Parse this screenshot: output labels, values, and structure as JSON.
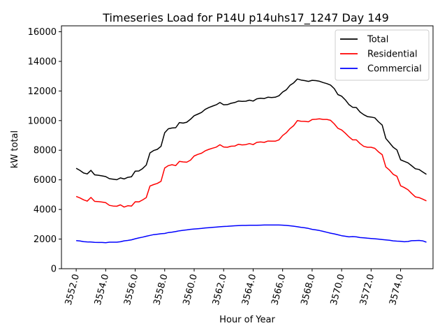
{
  "chart_data": {
    "type": "line",
    "title": "Timeseries Load for P14U p14uhs17_1247  Day 149",
    "xlabel": "Hour of Year",
    "ylabel": "kW total",
    "xlim": [
      3551.0,
      3576.2
    ],
    "ylim": [
      0,
      16400
    ],
    "x_ticks": [
      3552,
      3554,
      3556,
      3558,
      3560,
      3562,
      3564,
      3566,
      3568,
      3570,
      3572,
      3574
    ],
    "x_tick_labels": [
      "3552.0",
      "3554.0",
      "3556.0",
      "3558.0",
      "3560.0",
      "3562.0",
      "3564.0",
      "3566.0",
      "3568.0",
      "3570.0",
      "3572.0",
      "3574.0"
    ],
    "y_ticks": [
      0,
      2000,
      4000,
      6000,
      8000,
      10000,
      12000,
      14000,
      16000
    ],
    "y_tick_labels": [
      "0",
      "2000",
      "4000",
      "6000",
      "8000",
      "10000",
      "12000",
      "14000",
      "16000"
    ],
    "legend_position": "top-right",
    "x": [
      3552.0,
      3552.25,
      3552.5,
      3552.75,
      3553.0,
      3553.25,
      3553.5,
      3553.75,
      3554.0,
      3554.25,
      3554.5,
      3554.75,
      3555.0,
      3555.25,
      3555.5,
      3555.75,
      3556.0,
      3556.25,
      3556.5,
      3556.75,
      3557.0,
      3557.25,
      3557.5,
      3557.75,
      3558.0,
      3558.25,
      3558.5,
      3558.75,
      3559.0,
      3559.25,
      3559.5,
      3559.75,
      3560.0,
      3560.25,
      3560.5,
      3560.75,
      3561.0,
      3561.25,
      3561.5,
      3561.75,
      3562.0,
      3562.25,
      3562.5,
      3562.75,
      3563.0,
      3563.25,
      3563.5,
      3563.75,
      3564.0,
      3564.25,
      3564.5,
      3564.75,
      3565.0,
      3565.25,
      3565.5,
      3565.75,
      3566.0,
      3566.25,
      3566.5,
      3566.75,
      3567.0,
      3567.25,
      3567.5,
      3567.75,
      3568.0,
      3568.25,
      3568.5,
      3568.75,
      3569.0,
      3569.25,
      3569.5,
      3569.75,
      3570.0,
      3570.25,
      3570.5,
      3570.75,
      3571.0,
      3571.25,
      3571.5,
      3571.75,
      3572.0,
      3572.25,
      3572.5,
      3572.75,
      3573.0,
      3573.25,
      3573.5,
      3573.75,
      3574.0,
      3574.25,
      3574.5,
      3574.75,
      3575.0,
      3575.25,
      3575.5,
      3575.75
    ],
    "series": [
      {
        "name": "Total",
        "color": "#000000",
        "values": [
          6780,
          6640,
          6460,
          6400,
          6640,
          6340,
          6310,
          6270,
          6220,
          6080,
          6040,
          6010,
          6130,
          6060,
          6170,
          6210,
          6590,
          6600,
          6760,
          7000,
          7820,
          7980,
          8060,
          8260,
          9180,
          9450,
          9500,
          9520,
          9870,
          9830,
          9890,
          10090,
          10330,
          10440,
          10550,
          10760,
          10880,
          10980,
          11070,
          11220,
          11070,
          11080,
          11170,
          11220,
          11320,
          11300,
          11310,
          11380,
          11320,
          11470,
          11510,
          11490,
          11580,
          11560,
          11580,
          11680,
          11930,
          12080,
          12380,
          12550,
          12810,
          12740,
          12700,
          12650,
          12720,
          12700,
          12660,
          12570,
          12500,
          12400,
          12160,
          11760,
          11650,
          11400,
          11080,
          10900,
          10880,
          10580,
          10400,
          10270,
          10240,
          10190,
          9920,
          9700,
          8800,
          8500,
          8200,
          8020,
          7350,
          7250,
          7150,
          6950,
          6750,
          6700,
          6530,
          6370
        ]
      },
      {
        "name": "Residential",
        "color": "#ff0000",
        "values": [
          4880,
          4780,
          4650,
          4560,
          4810,
          4550,
          4530,
          4500,
          4460,
          4280,
          4230,
          4220,
          4310,
          4160,
          4250,
          4230,
          4520,
          4510,
          4640,
          4800,
          5580,
          5680,
          5760,
          5900,
          6800,
          6960,
          7020,
          6960,
          7250,
          7210,
          7190,
          7330,
          7610,
          7720,
          7800,
          7960,
          8060,
          8140,
          8210,
          8370,
          8220,
          8200,
          8270,
          8280,
          8400,
          8360,
          8380,
          8450,
          8380,
          8530,
          8560,
          8530,
          8620,
          8610,
          8610,
          8700,
          8990,
          9180,
          9460,
          9660,
          10000,
          9960,
          9950,
          9920,
          10070,
          10090,
          10120,
          10080,
          10080,
          10020,
          9780,
          9480,
          9370,
          9150,
          8900,
          8700,
          8700,
          8450,
          8260,
          8200,
          8200,
          8130,
          7890,
          7700,
          6870,
          6660,
          6370,
          6240,
          5600,
          5480,
          5330,
          5080,
          4850,
          4800,
          4700,
          4580
        ]
      },
      {
        "name": "Commercial",
        "color": "#0000ff",
        "values": [
          1900,
          1870,
          1830,
          1810,
          1800,
          1780,
          1770,
          1770,
          1760,
          1790,
          1790,
          1790,
          1820,
          1880,
          1910,
          1950,
          2020,
          2080,
          2130,
          2190,
          2250,
          2300,
          2330,
          2360,
          2380,
          2440,
          2470,
          2510,
          2560,
          2590,
          2620,
          2660,
          2680,
          2700,
          2720,
          2750,
          2770,
          2790,
          2810,
          2830,
          2850,
          2860,
          2880,
          2900,
          2910,
          2920,
          2920,
          2930,
          2930,
          2930,
          2940,
          2950,
          2950,
          2950,
          2950,
          2950,
          2940,
          2920,
          2900,
          2870,
          2830,
          2790,
          2760,
          2720,
          2660,
          2620,
          2580,
          2520,
          2460,
          2400,
          2350,
          2290,
          2230,
          2190,
          2150,
          2170,
          2150,
          2100,
          2090,
          2060,
          2040,
          2020,
          2000,
          1970,
          1940,
          1920,
          1880,
          1860,
          1850,
          1820,
          1840,
          1890,
          1900,
          1910,
          1880,
          1790
        ]
      }
    ]
  }
}
